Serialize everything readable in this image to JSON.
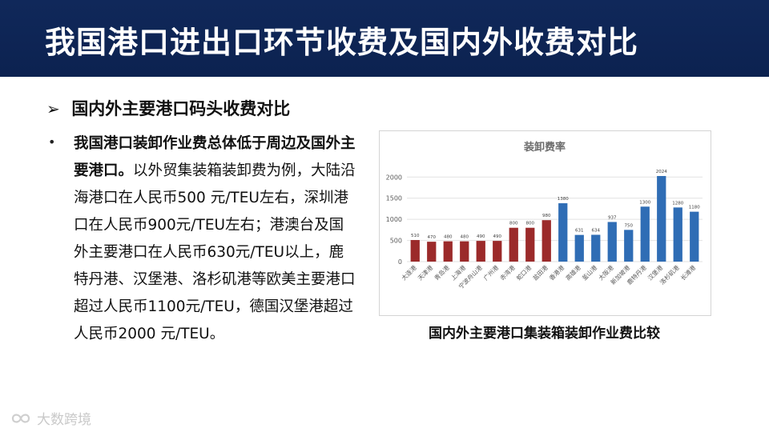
{
  "header": {
    "title": "我国港口进出口环节收费及国内外收费对比",
    "bg_color": "#0e2552"
  },
  "section": {
    "arrow": "➢",
    "heading": "国内外主要港口码头收费对比"
  },
  "bullet": {
    "marker": "•",
    "bold_text": "我国港口装卸作业费总体低于周边及国外主要港口。",
    "body_text": "以外贸集装箱装卸费为例，大陆沿海港口在人民币500 元/TEU左右，深圳港口在人民币900元/TEU左右；港澳台及国外主要港口在人民币630元/TEU以上，鹿特丹港、汉堡港、洛杉矶港等欧美主要港口超过人民币1100元/TEU，德国汉堡港超过人民币2000 元/TEU。"
  },
  "chart_caption": "国内外主要港口集装箱装卸作业费比较",
  "watermark": {
    "text": "大数跨境",
    "icon": "infinity-logo-icon"
  },
  "chart_data": {
    "type": "bar",
    "title": "装卸费率",
    "categories": [
      "大连港",
      "天津港",
      "青岛港",
      "上海港",
      "宁波舟山港",
      "广州港",
      "赤湾港",
      "蛇口港",
      "盐田港",
      "香港港",
      "高雄港",
      "釜山港",
      "大阪港",
      "新加坡港",
      "鹿特丹港",
      "汉堡港",
      "洛杉矶港",
      "长滩港"
    ],
    "values": [
      510,
      470,
      480,
      480,
      490,
      490,
      800,
      800,
      980,
      1380,
      631,
      634,
      937,
      750,
      1300,
      2024,
      1280,
      1180
    ],
    "bar_colors": [
      "#9b2a2a",
      "#9b2a2a",
      "#9b2a2a",
      "#9b2a2a",
      "#9b2a2a",
      "#9b2a2a",
      "#9b2a2a",
      "#9b2a2a",
      "#9b2a2a",
      "#2f6db5",
      "#2f6db5",
      "#2f6db5",
      "#2f6db5",
      "#2f6db5",
      "#2f6db5",
      "#2f6db5",
      "#2f6db5",
      "#2f6db5"
    ],
    "yticks": [
      0,
      500,
      1000,
      1500,
      2000
    ],
    "ylim": [
      0,
      2100
    ],
    "grid": true,
    "legend": "none"
  }
}
